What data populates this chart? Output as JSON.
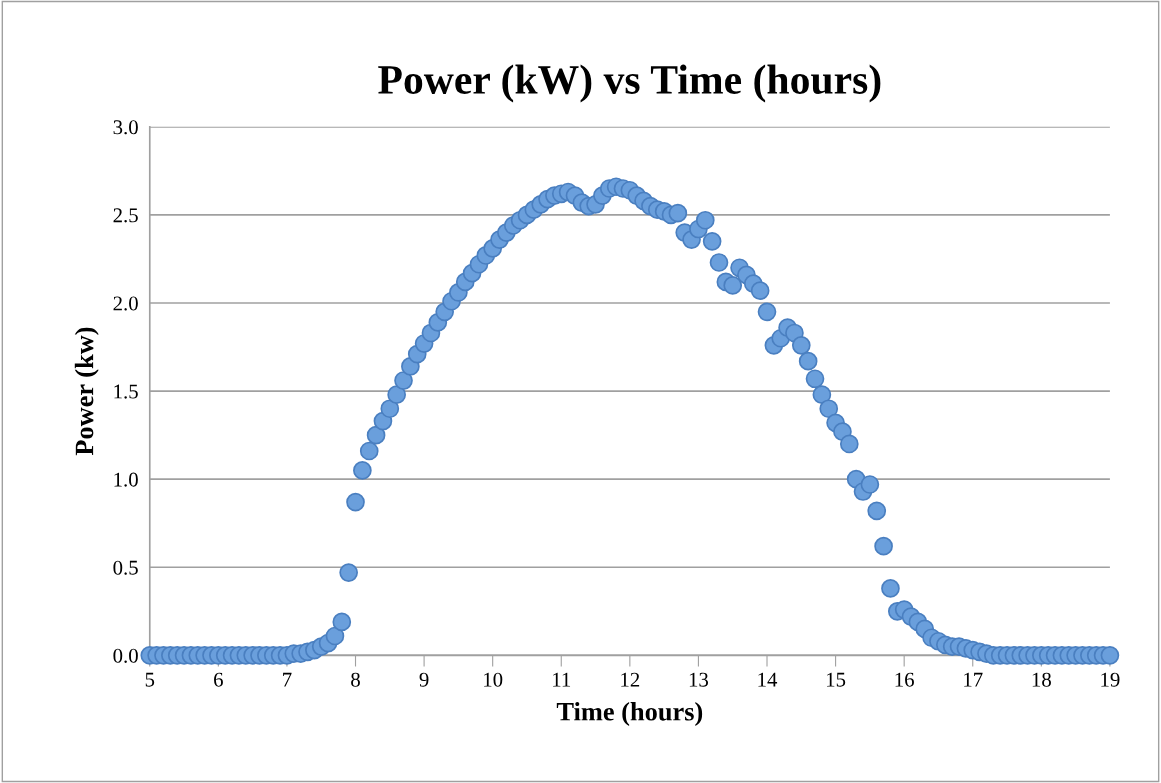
{
  "chart_data": {
    "type": "scatter",
    "title": "Power (kW) vs Time (hours)",
    "xlabel": "Time (hours)",
    "ylabel": "Power (kw)",
    "x": [
      5.0,
      5.1,
      5.2,
      5.3,
      5.4,
      5.5,
      5.6,
      5.7,
      5.8,
      5.9,
      6.0,
      6.1,
      6.2,
      6.3,
      6.4,
      6.5,
      6.6,
      6.7,
      6.8,
      6.9,
      7.0,
      7.1,
      7.2,
      7.3,
      7.4,
      7.5,
      7.6,
      7.7,
      7.8,
      7.9,
      8.0,
      8.1,
      8.2,
      8.3,
      8.4,
      8.5,
      8.6,
      8.7,
      8.8,
      8.9,
      9.0,
      9.1,
      9.2,
      9.3,
      9.4,
      9.5,
      9.6,
      9.7,
      9.8,
      9.9,
      10.0,
      10.1,
      10.2,
      10.3,
      10.4,
      10.5,
      10.6,
      10.7,
      10.8,
      10.9,
      11.0,
      11.1,
      11.2,
      11.3,
      11.4,
      11.5,
      11.6,
      11.7,
      11.8,
      11.9,
      12.0,
      12.1,
      12.2,
      12.3,
      12.4,
      12.5,
      12.6,
      12.7,
      12.8,
      12.9,
      13.0,
      13.1,
      13.2,
      13.3,
      13.4,
      13.5,
      13.6,
      13.7,
      13.8,
      13.9,
      14.0,
      14.1,
      14.2,
      14.3,
      14.4,
      14.5,
      14.6,
      14.7,
      14.8,
      14.9,
      15.0,
      15.1,
      15.2,
      15.3,
      15.4,
      15.5,
      15.6,
      15.7,
      15.8,
      15.9,
      16.0,
      16.1,
      16.2,
      16.3,
      16.4,
      16.5,
      16.6,
      16.7,
      16.8,
      16.9,
      17.0,
      17.1,
      17.2,
      17.3,
      17.4,
      17.5,
      17.6,
      17.7,
      17.8,
      17.9,
      18.0,
      18.1,
      18.2,
      18.3,
      18.4,
      18.5,
      18.6,
      18.7,
      18.8,
      18.9,
      19.0
    ],
    "values": [
      0,
      0,
      0,
      0,
      0,
      0,
      0,
      0,
      0,
      0,
      0,
      0,
      0,
      0,
      0,
      0,
      0,
      0,
      0,
      0,
      0,
      0.01,
      0.01,
      0.02,
      0.03,
      0.05,
      0.07,
      0.11,
      0.19,
      0.47,
      0.87,
      1.05,
      1.16,
      1.25,
      1.33,
      1.4,
      1.48,
      1.56,
      1.64,
      1.71,
      1.77,
      1.83,
      1.89,
      1.95,
      2.01,
      2.06,
      2.12,
      2.17,
      2.22,
      2.27,
      2.31,
      2.36,
      2.4,
      2.44,
      2.47,
      2.5,
      2.53,
      2.56,
      2.59,
      2.61,
      2.62,
      2.63,
      2.61,
      2.57,
      2.55,
      2.56,
      2.61,
      2.65,
      2.66,
      2.65,
      2.64,
      2.61,
      2.58,
      2.55,
      2.53,
      2.52,
      2.5,
      2.51,
      2.4,
      2.36,
      2.42,
      2.47,
      2.35,
      2.23,
      2.12,
      2.1,
      2.2,
      2.16,
      2.11,
      2.07,
      1.95,
      1.76,
      1.8,
      1.86,
      1.83,
      1.76,
      1.67,
      1.57,
      1.48,
      1.4,
      1.32,
      1.27,
      1.2,
      1.0,
      0.93,
      0.97,
      0.82,
      0.62,
      0.38,
      0.25,
      0.26,
      0.22,
      0.19,
      0.15,
      0.1,
      0.08,
      0.06,
      0.05,
      0.05,
      0.04,
      0.03,
      0.02,
      0.01,
      0,
      0,
      0,
      0,
      0,
      0,
      0,
      0,
      0,
      0,
      0,
      0,
      0,
      0,
      0,
      0,
      0,
      0
    ],
    "color": "#6a9fdc",
    "marker": "circle",
    "xlim": [
      5,
      19
    ],
    "xticks": [
      5,
      6,
      7,
      8,
      9,
      10,
      11,
      12,
      13,
      14,
      15,
      16,
      17,
      18,
      19
    ],
    "ylim": [
      0,
      3.0
    ],
    "yticks": [
      {
        "value": 0,
        "label": "0.0"
      },
      {
        "value": 0.5,
        "label": "0.5"
      },
      {
        "value": 1.0,
        "label": "1.0"
      },
      {
        "value": 1.5,
        "label": "1.5"
      },
      {
        "value": 2.0,
        "label": "2.0"
      },
      {
        "value": 2.5,
        "label": "2.5"
      },
      {
        "value": 3.0,
        "label": "3.0"
      }
    ],
    "grid": "y",
    "legend": false
  }
}
